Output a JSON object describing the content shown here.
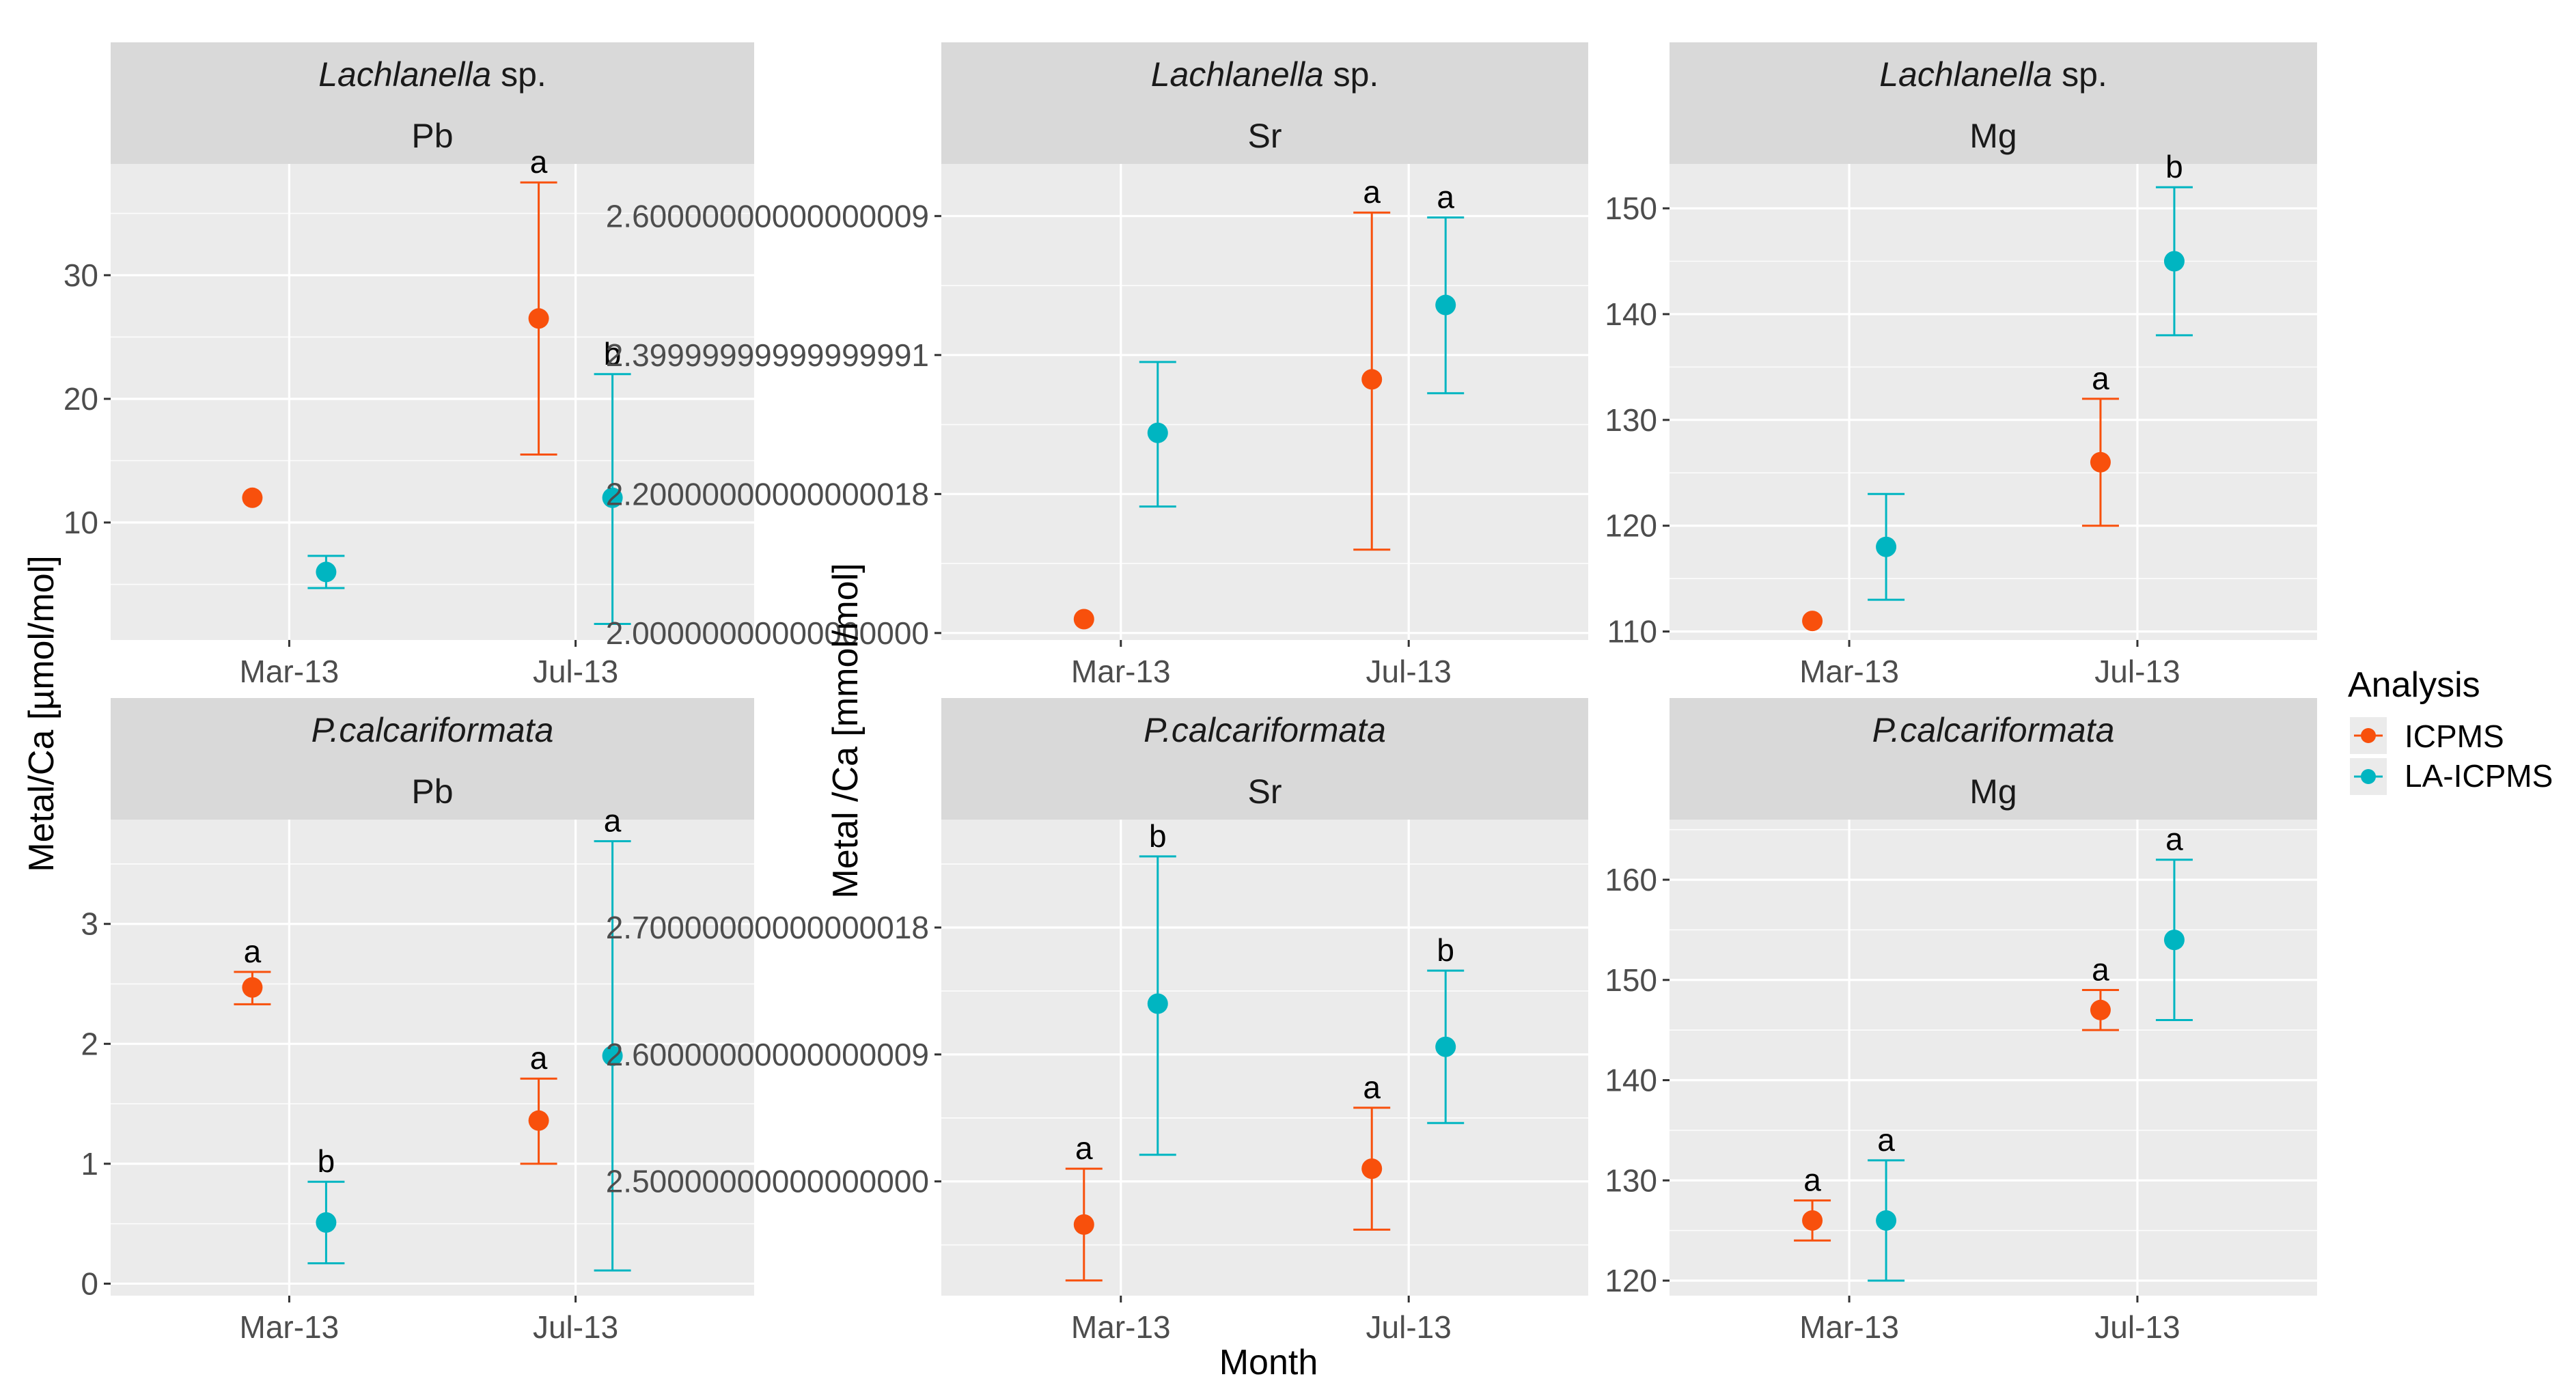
{
  "chart_data": {
    "type": "scatter",
    "subtype": "point-with-errorbars, faceted",
    "xlabel": "Month",
    "ylabel_left": "Metal/Ca [µmol/mol]",
    "ylabel_mid": "Metal /Ca [mmol/mol]",
    "categories": [
      "Mar-13",
      "Jul-13"
    ],
    "legend": {
      "title": "Analysis",
      "position": "right",
      "entries": [
        {
          "name": "ICPMS",
          "color": "#f8500c"
        },
        {
          "name": "LA-ICPMS",
          "color": "#00b5c1"
        }
      ]
    },
    "panels": [
      {
        "species": "Lachlanella",
        "species_suffix": " sp.",
        "element": "Pb",
        "ylim": [
          0.5,
          39
        ],
        "yticks": [
          10,
          20,
          30
        ],
        "series": [
          {
            "name": "ICPMS",
            "points": [
              {
                "x": "Mar-13",
                "y": 12
              },
              {
                "x": "Jul-13",
                "y": 26.5,
                "lo": 15.5,
                "hi": 37.5,
                "label": "a"
              }
            ]
          },
          {
            "name": "LA-ICPMS",
            "points": [
              {
                "x": "Mar-13",
                "y": 6,
                "lo": 4.7,
                "hi": 7.3
              },
              {
                "x": "Jul-13",
                "y": 12,
                "lo": 1.8,
                "hi": 22,
                "label": "b"
              }
            ]
          }
        ]
      },
      {
        "species": "Lachlanella",
        "species_suffix": " sp.",
        "element": "Sr",
        "ylim": [
          1.99,
          2.675
        ],
        "yticks": [
          2.0,
          2.2,
          2.4,
          2.6
        ],
        "series": [
          {
            "name": "ICPMS",
            "points": [
              {
                "x": "Mar-13",
                "y": 2.02
              },
              {
                "x": "Jul-13",
                "y": 2.365,
                "lo": 2.12,
                "hi": 2.605,
                "label": "a"
              }
            ]
          },
          {
            "name": "LA-ICPMS",
            "points": [
              {
                "x": "Mar-13",
                "y": 2.288,
                "lo": 2.182,
                "hi": 2.39
              },
              {
                "x": "Jul-13",
                "y": 2.472,
                "lo": 2.345,
                "hi": 2.598,
                "label": "a"
              }
            ]
          }
        ]
      },
      {
        "species": "Lachlanella",
        "species_suffix": " sp.",
        "element": "Mg",
        "ylim": [
          109.2,
          154.2
        ],
        "yticks": [
          110,
          120,
          130,
          140,
          150
        ],
        "series": [
          {
            "name": "ICPMS",
            "points": [
              {
                "x": "Mar-13",
                "y": 111
              },
              {
                "x": "Jul-13",
                "y": 126,
                "lo": 120,
                "hi": 132,
                "label": "a"
              }
            ]
          },
          {
            "name": "LA-ICPMS",
            "points": [
              {
                "x": "Mar-13",
                "y": 118,
                "lo": 113,
                "hi": 123
              },
              {
                "x": "Jul-13",
                "y": 145,
                "lo": 138,
                "hi": 152,
                "label": "b"
              }
            ]
          }
        ]
      },
      {
        "species": "P.calcariformata",
        "species_suffix": "",
        "element": "Pb",
        "ylim": [
          -0.1,
          3.87
        ],
        "yticks": [
          0,
          1,
          2,
          3
        ],
        "series": [
          {
            "name": "ICPMS",
            "points": [
              {
                "x": "Mar-13",
                "y": 2.47,
                "lo": 2.33,
                "hi": 2.6,
                "label": "a"
              },
              {
                "x": "Jul-13",
                "y": 1.36,
                "lo": 1.0,
                "hi": 1.71,
                "label": "a"
              }
            ]
          },
          {
            "name": "LA-ICPMS",
            "points": [
              {
                "x": "Mar-13",
                "y": 0.51,
                "lo": 0.17,
                "hi": 0.85,
                "label": "b"
              },
              {
                "x": "Jul-13",
                "y": 1.9,
                "lo": 0.11,
                "hi": 3.69,
                "label": "a"
              }
            ]
          }
        ]
      },
      {
        "species": "P.calcariformata",
        "species_suffix": "",
        "element": "Sr",
        "ylim": [
          2.41,
          2.785
        ],
        "yticks": [
          2.5,
          2.6,
          2.7
        ],
        "series": [
          {
            "name": "ICPMS",
            "points": [
              {
                "x": "Mar-13",
                "y": 2.466,
                "lo": 2.422,
                "hi": 2.51,
                "label": "a"
              },
              {
                "x": "Jul-13",
                "y": 2.51,
                "lo": 2.462,
                "hi": 2.558,
                "label": "a"
              }
            ]
          },
          {
            "name": "LA-ICPMS",
            "points": [
              {
                "x": "Mar-13",
                "y": 2.64,
                "lo": 2.521,
                "hi": 2.756,
                "label": "b"
              },
              {
                "x": "Jul-13",
                "y": 2.606,
                "lo": 2.546,
                "hi": 2.666,
                "label": "b"
              }
            ]
          }
        ]
      },
      {
        "species": "P.calcariformata",
        "species_suffix": "",
        "element": "Mg",
        "ylim": [
          118.5,
          166
        ],
        "yticks": [
          120,
          130,
          140,
          150,
          160
        ],
        "series": [
          {
            "name": "ICPMS",
            "points": [
              {
                "x": "Mar-13",
                "y": 126,
                "lo": 124,
                "hi": 128,
                "label": "a"
              },
              {
                "x": "Jul-13",
                "y": 147,
                "lo": 145,
                "hi": 149,
                "label": "a"
              }
            ]
          },
          {
            "name": "LA-ICPMS",
            "points": [
              {
                "x": "Mar-13",
                "y": 126,
                "lo": 120,
                "hi": 132,
                "label": "a"
              },
              {
                "x": "Jul-13",
                "y": 154,
                "lo": 146,
                "hi": 162,
                "label": "a"
              }
            ]
          }
        ]
      }
    ]
  }
}
